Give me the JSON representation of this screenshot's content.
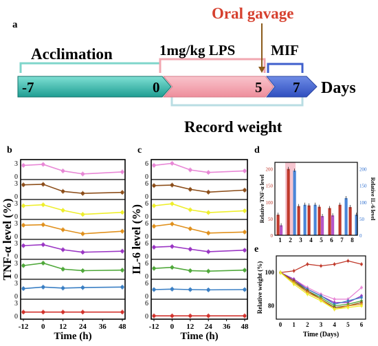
{
  "panels": {
    "a": "a",
    "b": "b",
    "c": "c",
    "d": "d",
    "e": "e"
  },
  "timeline": {
    "phases": [
      {
        "label": "Acclimation",
        "color": "#27b3a6"
      },
      {
        "label": "1mg/kg LPS",
        "color": "#f1a2ad"
      },
      {
        "label": "MIF",
        "color": "#3a5cc7"
      }
    ],
    "ticks": [
      "-7",
      "0",
      "5",
      "7"
    ],
    "unit": "Days",
    "gavage_label": "Oral gavage",
    "gavage_color": "#d6412f",
    "record_label": "Record weight",
    "bar_colors": {
      "teal": "#2cb3a8",
      "pink": "#f2a0ac",
      "blue": "#4367cf"
    }
  },
  "chart_data": [
    {
      "id": "b",
      "type": "line",
      "ylabel": "TNF-α level (%)",
      "xlabel": "Time (h)",
      "x": [
        -12,
        0,
        12,
        24,
        48
      ],
      "xticks": [
        "-12",
        "0",
        "12",
        "24",
        "36",
        "48"
      ],
      "xtick_values": [
        -12,
        0,
        12,
        24,
        36,
        48
      ],
      "yticks": [
        "0",
        "3"
      ],
      "ylim": [
        0,
        3
      ],
      "series": [
        {
          "color": "#e887d6",
          "values": [
            2.4,
            2.6,
            1.3,
            0.7,
            1.1
          ]
        },
        {
          "color": "#8c4e1a",
          "values": [
            2.5,
            2.6,
            1.2,
            0.8,
            1.0
          ]
        },
        {
          "color": "#eeee2a",
          "values": [
            2.3,
            2.5,
            1.4,
            0.6,
            1.0
          ]
        },
        {
          "color": "#e0901c",
          "values": [
            2.4,
            2.5,
            1.5,
            0.7,
            1.2
          ]
        },
        {
          "color": "#9a35c4",
          "values": [
            2.3,
            2.5,
            1.5,
            1.0,
            1.2
          ]
        },
        {
          "color": "#4fa83a",
          "values": [
            2.3,
            2.8,
            1.6,
            1.3,
            1.4
          ]
        },
        {
          "color": "#3a7fc4",
          "values": [
            1.7,
            2.0,
            1.8,
            1.9,
            2.0
          ]
        },
        {
          "color": "#d1322c",
          "values": [
            1.0,
            1.0,
            1.0,
            1.0,
            1.0
          ]
        }
      ]
    },
    {
      "id": "c",
      "type": "line",
      "ylabel": "IL-6 level (%)",
      "xlabel": "Time (h)",
      "x": [
        -12,
        0,
        12,
        24,
        48
      ],
      "xticks": [
        "-12",
        "0",
        "12",
        "24",
        "36",
        "48"
      ],
      "xtick_values": [
        -12,
        0,
        12,
        24,
        36,
        48
      ],
      "yticks": [
        "0",
        "6"
      ],
      "ylim": [
        0,
        6
      ],
      "series": [
        {
          "color": "#e887d6",
          "values": [
            4.8,
            5.6,
            3.0,
            2.0,
            2.6
          ]
        },
        {
          "color": "#8c4e1a",
          "values": [
            4.7,
            4.9,
            3.2,
            2.1,
            2.9
          ]
        },
        {
          "color": "#eeee2a",
          "values": [
            4.6,
            5.4,
            3.0,
            1.9,
            2.6
          ]
        },
        {
          "color": "#e0901c",
          "values": [
            4.4,
            5.3,
            3.4,
            1.7,
            2.1
          ]
        },
        {
          "color": "#9a35c4",
          "values": [
            4.0,
            4.3,
            3.2,
            2.2,
            2.8
          ]
        },
        {
          "color": "#4fa83a",
          "values": [
            3.5,
            3.9,
            2.6,
            2.4,
            2.8
          ]
        },
        {
          "color": "#3a7fc4",
          "values": [
            3.0,
            3.2,
            3.0,
            2.9,
            3.0
          ]
        },
        {
          "color": "#d1322c",
          "values": [
            0.5,
            0.5,
            0.5,
            0.5,
            0.5
          ]
        }
      ]
    },
    {
      "id": "d",
      "type": "bar",
      "ylabel": "Relative TNF-α level",
      "ylabel_right": "Relative IL-6 level",
      "categories": [
        "1",
        "2",
        "3",
        "4",
        "5",
        "6",
        "7",
        "8"
      ],
      "yticks": [
        "0",
        "50",
        "100",
        "150",
        "200"
      ],
      "ylim": [
        0,
        220
      ],
      "yticks_right": [
        "0",
        "50",
        "100",
        "150",
        "200"
      ],
      "highlight_category": "2",
      "series": [
        {
          "color": "#c0392b",
          "values": [
            62,
            200,
            88,
            90,
            86,
            82,
            92,
            85
          ]
        },
        {
          "color": "#b655c8",
          "values": [
            30,
            0,
            0,
            0,
            58,
            60,
            0,
            0
          ]
        },
        {
          "color": "#4a86d8",
          "values": [
            0,
            195,
            92,
            92,
            0,
            0,
            112,
            62
          ]
        }
      ]
    },
    {
      "id": "e",
      "type": "line",
      "ylabel": "Relative weight (%)",
      "xlabel": "Time (Days)",
      "x": [
        0,
        1,
        2,
        3,
        4,
        5,
        6
      ],
      "xticks": [
        "0",
        "1",
        "2",
        "3",
        "4",
        "5",
        "6"
      ],
      "yticks": [
        "80",
        "100"
      ],
      "ylim": [
        72,
        110
      ],
      "series": [
        {
          "color": "#c0392b",
          "values": [
            100,
            101,
            105,
            104,
            105,
            107,
            105
          ]
        },
        {
          "color": "#e887d6",
          "values": [
            100,
            96,
            91,
            87,
            84,
            84,
            91
          ]
        },
        {
          "color": "#9a35c4",
          "values": [
            100,
            96,
            90,
            86,
            82,
            82,
            86
          ]
        },
        {
          "color": "#3a7fc4",
          "values": [
            100,
            95,
            90,
            86,
            81,
            83,
            85
          ]
        },
        {
          "color": "#4fa83a",
          "values": [
            100,
            94,
            89,
            85,
            80,
            81,
            83
          ]
        },
        {
          "color": "#8c4e1a",
          "values": [
            100,
            95,
            89,
            84,
            79,
            80,
            82
          ]
        },
        {
          "color": "#e0901c",
          "values": [
            100,
            94,
            88,
            84,
            78,
            80,
            81
          ]
        },
        {
          "color": "#eeee2a",
          "values": [
            100,
            93,
            87,
            83,
            78,
            79,
            80
          ]
        }
      ]
    }
  ]
}
